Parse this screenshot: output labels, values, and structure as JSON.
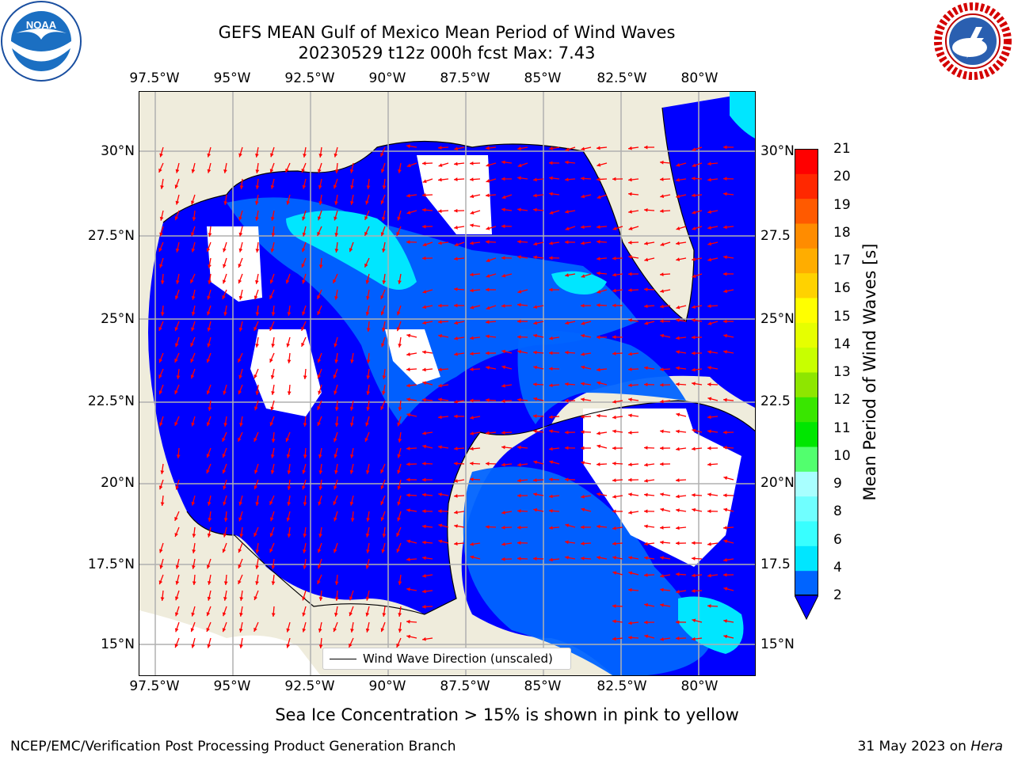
{
  "title_line1": "GEFS MEAN Gulf of Mexico Mean Period of Wind Waves",
  "title_line2": "20230529 t12z 000h fcst   Max: 7.43",
  "map": {
    "lon_ticks": [
      "97.5°W",
      "95°W",
      "92.5°W",
      "90°W",
      "87.5°W",
      "85°W",
      "82.5°W",
      "80°W"
    ],
    "lat_ticks": [
      "30°N",
      "27.5°N",
      "25°N",
      "22.5°N",
      "20°N",
      "17.5°N",
      "15°N"
    ],
    "right_lat_ticks": [
      "30°N",
      "27.5",
      "25°N",
      "22.5",
      "20°N",
      "17.5",
      "15°N"
    ],
    "land_color": "#efecdc",
    "arrow_color": "#ff0000",
    "legend_label": "Wind Wave Direction (unscaled)"
  },
  "colorbar": {
    "label": "Mean Period of Wind Waves [s]",
    "ticks": [
      "2",
      "4",
      "6",
      "8",
      "9",
      "10",
      "11",
      "12",
      "13",
      "14",
      "15",
      "16",
      "17",
      "18",
      "19",
      "20",
      "21"
    ],
    "colors": [
      "#0064ff",
      "#00e6ff",
      "#38ffff",
      "#70ffff",
      "#a8ffff",
      "#52ff6e",
      "#00e600",
      "#39e600",
      "#8ee600",
      "#c8ff00",
      "#e6ff00",
      "#ffff00",
      "#ffd200",
      "#ffad00",
      "#ff8c00",
      "#ff5a00",
      "#ff2800",
      "#ff0000"
    ],
    "extend_color": "#0000ff"
  },
  "subcaption": "Sea Ice Concentration > 15% is shown in pink to yellow",
  "footer_left": "NCEP/EMC/Verification Post Processing Product Generation Branch",
  "footer_right_date": "31 May 2023 on",
  "footer_right_machine": "Hera",
  "logos": {
    "left": "noaa-logo",
    "right": "nws-logo"
  }
}
